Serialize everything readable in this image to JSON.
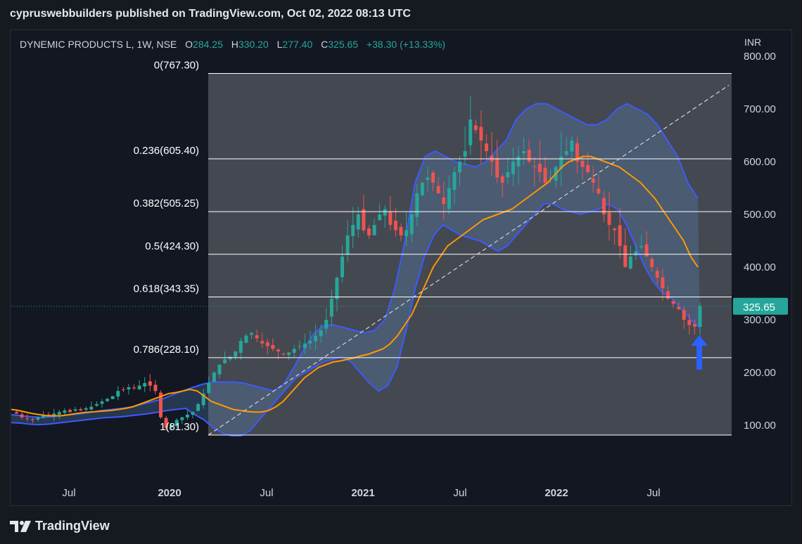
{
  "header": {
    "published": "cypruswebbuilders published on TradingView.com, Oct 02, 2022 08:13 UTC"
  },
  "legend": {
    "symbol": "DYNEMIC PRODUCTS L, 1W, NSE",
    "open_label": "O",
    "open": "284.25",
    "high_label": "H",
    "high": "330.20",
    "low_label": "L",
    "low": "277.40",
    "close_label": "C",
    "close": "325.65",
    "change": "+38.30 (+13.33%)"
  },
  "axis": {
    "unit": "INR"
  },
  "brand": {
    "name": "TradingView"
  },
  "colors": {
    "bg": "#131722",
    "up": "#26a69a",
    "down": "#ef5350",
    "band": "#3d5afe",
    "basis": "#ff9800",
    "fib_zone": "#4a4e56",
    "price_badge": "#26a69a"
  },
  "chart_data": {
    "type": "candlestick",
    "symbol": "DYNEMIC PRODUCTS L",
    "interval": "1W",
    "exchange": "NSE",
    "currency": "INR",
    "ylim": [
      0,
      800
    ],
    "y_ticks": [
      "100.00",
      "200.00",
      "300.00",
      "400.00",
      "500.00",
      "600.00",
      "700.00",
      "800.00"
    ],
    "x_ticks": [
      "Jul",
      "2020",
      "Jul",
      "2021",
      "Jul",
      "2022",
      "Jul"
    ],
    "last_price": "325.65",
    "fib_levels": [
      {
        "ratio": 0,
        "price": 767.3,
        "label": "0(767.30)"
      },
      {
        "ratio": 0.236,
        "price": 605.4,
        "label": "0.236(605.40)"
      },
      {
        "ratio": 0.382,
        "price": 505.25,
        "label": "0.382(505.25)"
      },
      {
        "ratio": 0.5,
        "price": 424.3,
        "label": "0.5(424.30)"
      },
      {
        "ratio": 0.618,
        "price": 343.35,
        "label": "0.618(343.35)"
      },
      {
        "ratio": 0.786,
        "price": 228.1,
        "label": "0.786(228.10)"
      },
      {
        "ratio": 1,
        "price": 81.3,
        "label": "1(81.30)"
      }
    ],
    "trend_line": [
      [
        81.3,
        81.3
      ],
      [
        705,
        705
      ]
    ],
    "price_series": [
      125,
      122,
      115,
      112,
      110,
      115,
      120,
      118,
      122,
      125,
      128,
      125,
      130,
      128,
      132,
      135,
      140,
      145,
      150,
      155,
      165,
      168,
      172,
      170,
      175,
      180,
      175,
      165,
      115,
      95,
      100,
      110,
      115,
      120,
      125,
      140,
      160,
      180,
      200,
      215,
      225,
      230,
      240,
      260,
      270,
      275,
      265,
      255,
      250,
      245,
      240,
      235,
      238,
      245,
      250,
      255,
      260,
      270,
      280,
      300,
      340,
      380,
      420,
      460,
      480,
      500,
      470,
      460,
      480,
      500,
      510,
      480,
      470,
      460,
      470,
      500,
      540,
      560,
      570,
      560,
      540,
      520,
      550,
      580,
      600,
      620,
      680,
      660,
      640,
      620,
      600,
      570,
      560,
      580,
      600,
      610,
      620,
      600,
      590,
      580,
      560,
      570,
      590,
      610,
      620,
      640,
      600,
      590,
      580,
      560,
      540,
      500,
      480,
      470,
      440,
      400,
      420,
      430,
      440,
      420,
      400,
      380,
      360,
      340,
      330,
      320,
      300,
      290,
      287,
      326
    ],
    "basis_series": [
      130,
      128,
      125,
      122,
      120,
      118,
      118,
      118,
      120,
      122,
      124,
      125,
      126,
      127,
      128,
      130,
      132,
      135,
      140,
      145,
      150,
      155,
      160,
      162,
      165,
      168,
      165,
      155,
      145,
      140,
      135,
      130,
      128,
      126,
      125,
      125,
      128,
      135,
      145,
      160,
      175,
      190,
      200,
      210,
      215,
      220,
      222,
      225,
      228,
      232,
      235,
      240,
      245,
      255,
      270,
      290,
      310,
      340,
      370,
      400,
      420,
      440,
      450,
      460,
      470,
      480,
      490,
      495,
      500,
      505,
      510,
      520,
      530,
      540,
      550,
      560,
      575,
      590,
      600,
      605,
      610,
      610,
      605,
      600,
      595,
      590,
      580,
      570,
      560,
      545,
      530,
      510,
      490,
      470,
      450,
      420,
      400
    ],
    "upper_band_series": [
      120,
      118,
      116,
      115,
      116,
      118,
      120,
      122,
      125,
      128,
      130,
      132,
      135,
      140,
      145,
      150,
      158,
      165,
      172,
      178,
      182,
      182,
      182,
      180,
      175,
      170,
      165,
      178,
      210,
      245,
      275,
      290,
      290,
      285,
      280,
      275,
      280,
      300,
      360,
      450,
      560,
      610,
      620,
      610,
      600,
      595,
      590,
      600,
      620,
      640,
      680,
      700,
      710,
      710,
      700,
      690,
      680,
      670,
      670,
      680,
      700,
      710,
      700,
      690,
      670,
      640,
      610,
      560,
      530
    ],
    "lower_band_series": [
      105,
      104,
      102,
      101,
      102,
      104,
      106,
      108,
      110,
      112,
      114,
      115,
      116,
      118,
      120,
      122,
      125,
      128,
      130,
      132,
      120,
      110,
      95,
      85,
      80,
      80,
      90,
      110,
      130,
      150,
      170,
      190,
      200,
      210,
      220,
      225,
      230,
      220,
      200,
      180,
      165,
      175,
      210,
      280,
      360,
      420,
      460,
      480,
      470,
      460,
      455,
      450,
      440,
      430,
      440,
      460,
      480,
      500,
      520,
      520,
      510,
      505,
      500,
      505,
      510,
      520,
      510,
      480,
      440,
      400,
      370,
      350,
      340,
      320,
      300,
      285
    ]
  }
}
